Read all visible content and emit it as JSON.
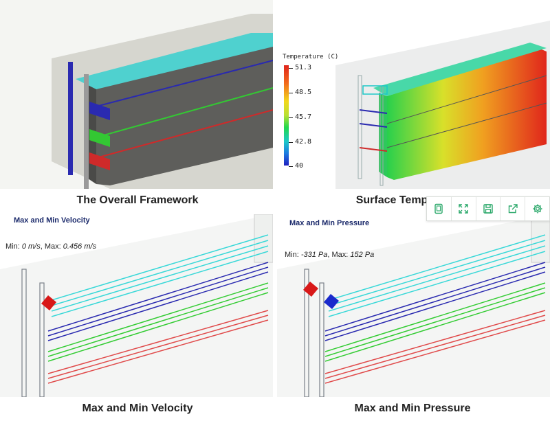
{
  "panels": {
    "overall": {
      "caption": "The Overall Framework"
    },
    "surface": {
      "caption": "Surface Temp",
      "legend": {
        "title": "Temperature (C)",
        "ticks": [
          "51.3",
          "48.5",
          "45.7",
          "42.8",
          "40"
        ]
      }
    },
    "velocity": {
      "caption": "Max and Min Velocity",
      "title": "Max and Min Velocity",
      "min_label": "Min: ",
      "min_value": "0 m/s",
      "max_label": ", Max: ",
      "max_value": "0.456 m/s"
    },
    "pressure": {
      "caption": "Max and Min Pressure",
      "title": "Max and Min Pressure",
      "min_label": "Min: ",
      "min_value": "-331 Pa",
      "max_label": ", Max: ",
      "max_value": "152 Pa"
    }
  },
  "toolbar": {
    "buttons": [
      {
        "icon": "tablet-icon"
      },
      {
        "icon": "fullscreen-icon"
      },
      {
        "icon": "save-icon"
      },
      {
        "icon": "share-icon"
      },
      {
        "icon": "gear-icon"
      }
    ],
    "icon_color": "#2aa86a"
  }
}
